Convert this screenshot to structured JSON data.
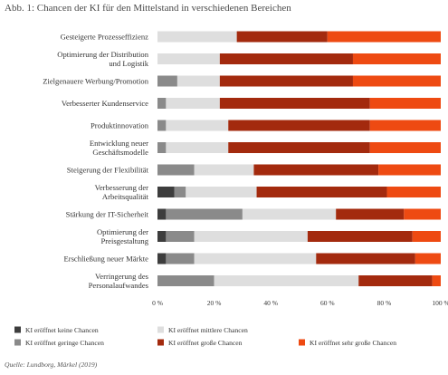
{
  "chart_data": {
    "type": "bar",
    "orientation": "horizontal",
    "stacked": true,
    "title": "Abb. 1: Chancen der KI für den Mittelstand in verschiedenen Bereichen",
    "source": "Quelle: Lundborg, Märkel (2019)",
    "categories": [
      [
        "Gesteigerte Prozesseffizienz"
      ],
      [
        "Optimierung der Distribution",
        "und Logistik"
      ],
      [
        "Zielgenauere Werbung/Promotion"
      ],
      [
        "Verbesserter Kundenservice"
      ],
      [
        "Produktinnovation"
      ],
      [
        "Entwicklung neuer",
        "Geschäftsmodelle"
      ],
      [
        "Steigerung der Flexibilität"
      ],
      [
        "Verbesserung der",
        "Arbeitsqualität"
      ],
      [
        "Stärkung der IT-Sicherheit"
      ],
      [
        "Optimierung der",
        "Preisgestaltung"
      ],
      [
        "Erschließung neuer Märkte"
      ],
      [
        "Verringerung des",
        "Personalaufwandes"
      ]
    ],
    "series": [
      {
        "name": "KI eröffnet keine Chancen",
        "color": "#3d3d3d",
        "values": [
          0,
          0,
          0,
          0,
          0,
          0,
          0,
          6,
          3,
          3,
          3,
          0
        ]
      },
      {
        "name": "KI eröffnet geringe Chancen",
        "color": "#8a8a8a",
        "values": [
          0,
          0,
          7,
          3,
          3,
          3,
          13,
          4,
          27,
          10,
          10,
          20
        ]
      },
      {
        "name": "KI eröffnet mittlere Chancen",
        "color": "#dedede",
        "values": [
          28,
          22,
          15,
          19,
          22,
          22,
          21,
          25,
          33,
          40,
          43,
          51
        ]
      },
      {
        "name": "KI eröffnet große Chancen",
        "color": "#a32a0e",
        "values": [
          32,
          47,
          47,
          53,
          50,
          50,
          44,
          46,
          24,
          37,
          35,
          26
        ]
      },
      {
        "name": "KI eröffnet sehr große Chancen",
        "color": "#ee4a12",
        "values": [
          40,
          31,
          31,
          25,
          25,
          25,
          22,
          19,
          13,
          10,
          9,
          3
        ]
      }
    ],
    "xticks": [
      "0 %",
      "20 %",
      "40 %",
      "60 %",
      "80 %",
      "100 %"
    ],
    "xlim": [
      0,
      100
    ],
    "grid": false,
    "legend": "bottom"
  }
}
